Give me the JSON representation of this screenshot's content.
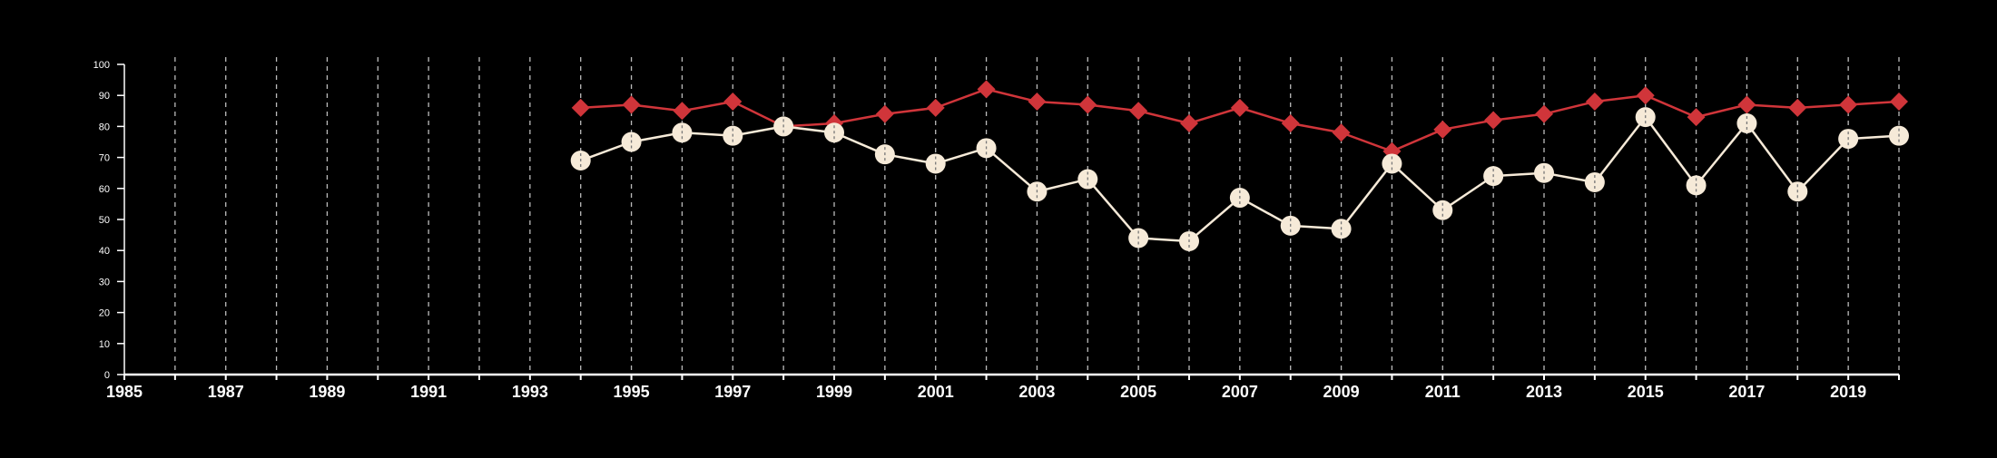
{
  "chart_data": {
    "type": "line",
    "title": "",
    "xlabel": "",
    "ylabel": "",
    "xlim": [
      1985,
      2020
    ],
    "ylim": [
      0,
      100
    ],
    "y_ticks": [
      "0",
      "10",
      "20",
      "30",
      "40",
      "50",
      "60",
      "70",
      "80",
      "90",
      "100"
    ],
    "x_ticks": [
      "1985",
      "1987",
      "1989",
      "1991",
      "1993",
      "1995",
      "1997",
      "1999",
      "2001",
      "2003",
      "2005",
      "2007",
      "2009",
      "2011",
      "2013",
      "2015",
      "2017",
      "2019"
    ],
    "grid": "vertical dashed, every year",
    "legend": "none",
    "x": [
      1994,
      1995,
      1996,
      1997,
      1998,
      1999,
      2000,
      2001,
      2002,
      2003,
      2004,
      2005,
      2006,
      2007,
      2008,
      2009,
      2010,
      2011,
      2012,
      2013,
      2014,
      2015,
      2016,
      2017,
      2018,
      2019,
      2020
    ],
    "series": [
      {
        "marker": "diamond",
        "color": "#d0353a",
        "values": [
          86,
          87,
          85,
          88,
          80,
          81,
          84,
          86,
          92,
          88,
          87,
          85,
          81,
          86,
          81,
          78,
          72,
          79,
          82,
          84,
          88,
          90,
          83,
          87,
          86,
          87,
          88
        ]
      },
      {
        "marker": "circle",
        "color": "#f6ead8",
        "values": [
          69,
          75,
          78,
          77,
          80,
          78,
          71,
          68,
          73,
          59,
          63,
          44,
          43,
          57,
          48,
          47,
          68,
          53,
          64,
          65,
          62,
          83,
          61,
          81,
          59,
          76,
          77
        ]
      }
    ]
  },
  "colors": {
    "background": "#000000",
    "axis": "#ffffff",
    "grid": "#bbbbbb",
    "series_red": "#d0353a",
    "series_cream": "#f6ead8"
  }
}
